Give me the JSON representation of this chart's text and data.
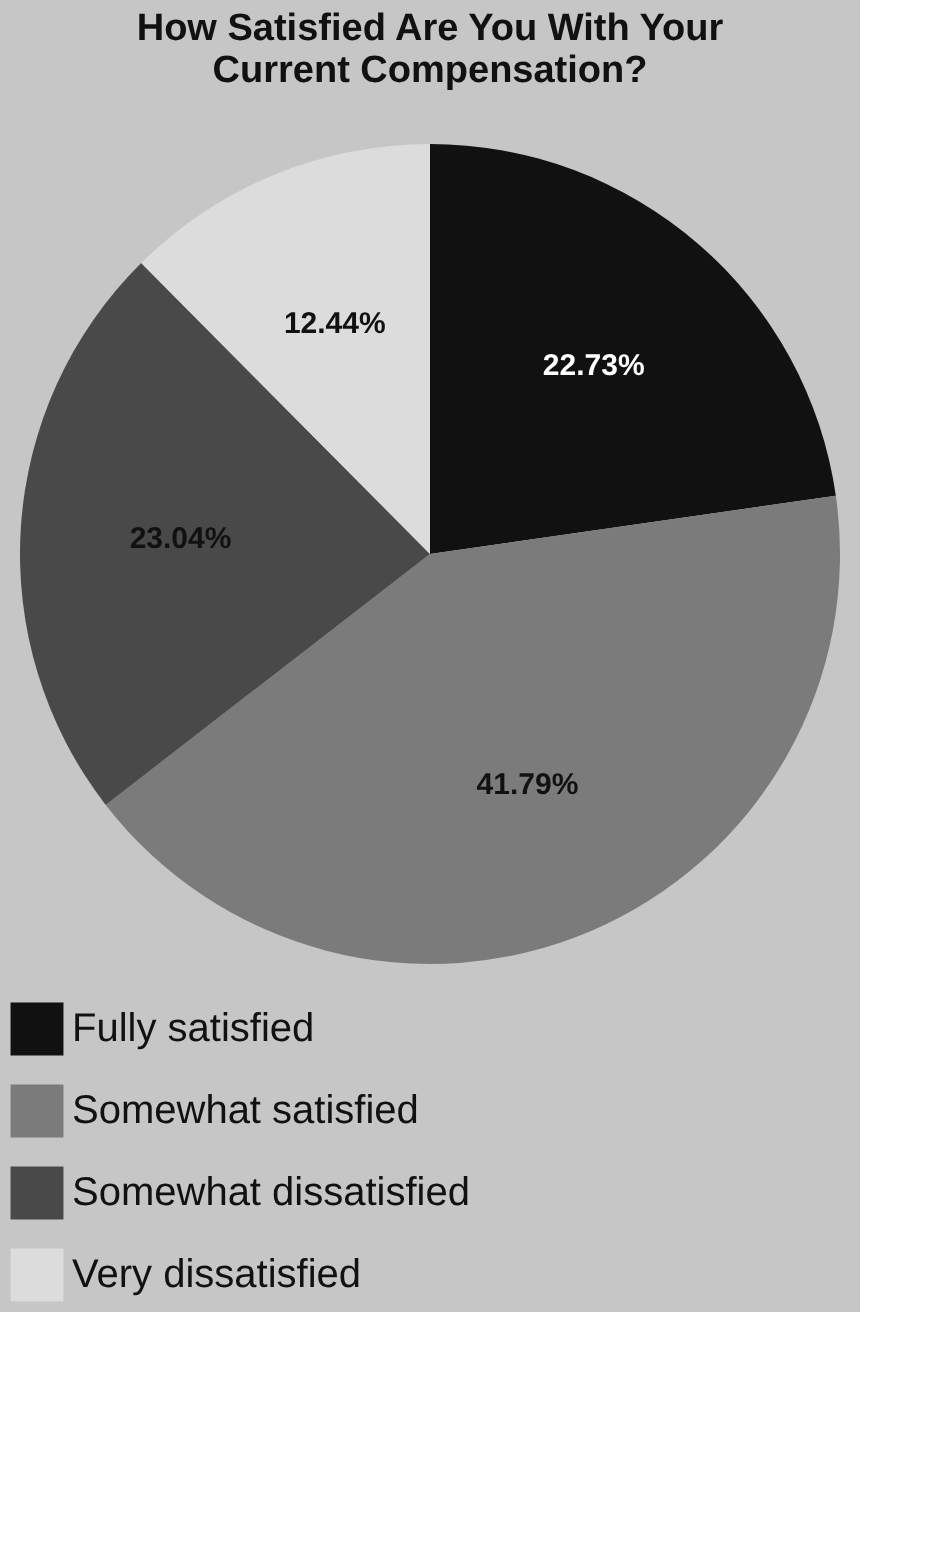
{
  "chart_data": {
    "type": "pie",
    "title": "How Satisfied Are You With Your Current Compensation?",
    "categories": [
      "Fully satisfied",
      "Somewhat satisfied",
      "Somewhat dissatisfied",
      "Very dissatisfied"
    ],
    "values": [
      22.73,
      41.79,
      23.04,
      12.44
    ],
    "value_labels": [
      "22.73%",
      "41.79%",
      "23.04%",
      "12.44%"
    ],
    "colors": [
      "#111111",
      "#7b7b7b",
      "#494949",
      "#dcdcdc"
    ],
    "legend": "bottom"
  }
}
